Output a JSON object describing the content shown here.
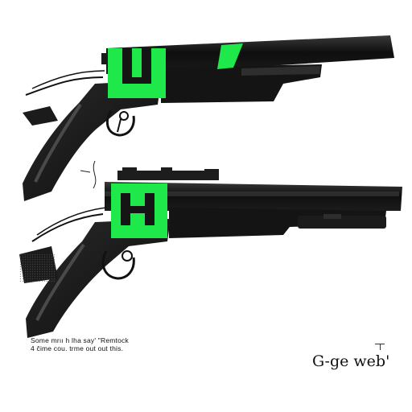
{
  "caption": {
    "line1": "Some  mrıı h  lha  say' \"Remtock",
    "line2": "4 čime  cou. trme  out  out  this."
  },
  "signature": "G-ge web'",
  "colors": {
    "ink": "#151515",
    "accent_green": "#1fe84a",
    "background": "#ffffff"
  },
  "figures": [
    {
      "name": "upper-rifle"
    },
    {
      "name": "lower-rifle"
    }
  ]
}
